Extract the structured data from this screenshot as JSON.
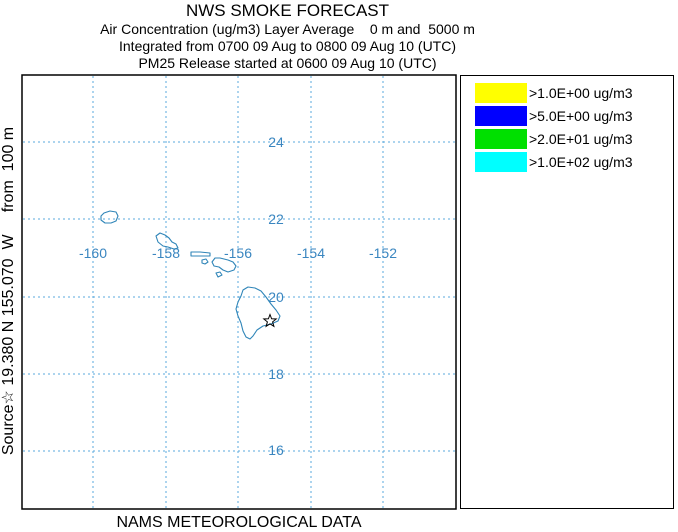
{
  "header": {
    "title": "NWS SMOKE FORECAST",
    "line2": "Air Concentration (ug/m3) Layer Average    0 m and  5000 m",
    "line3": "Integrated from 0700 09 Aug to 0800 09 Aug 10 (UTC)",
    "line4": "PM25 Release started at 0600 09 Aug 10 (UTC)"
  },
  "side_label": "Source☆ 19.380 N 155.070  W     from  100 m",
  "bottom_label": "NAMS METEOROLOGICAL DATA",
  "map": {
    "gridline_color": "#5aa9dc",
    "label_color": "#3a86c0",
    "coast_color": "#2f85b8",
    "longitude_labels": [
      "-160",
      "-158",
      "-156",
      "-154",
      "-152"
    ],
    "latitude_labels": [
      "24",
      "22",
      "20",
      "18",
      "16"
    ],
    "source_marker": "star-icon"
  },
  "legend": {
    "items": [
      {
        "label": ">1.0E+00 ug/m3",
        "color": "#ffff00"
      },
      {
        "label": ">5.0E+00 ug/m3",
        "color": "#0000ff"
      },
      {
        "label": ">2.0E+01 ug/m3",
        "color": "#00e000"
      },
      {
        "label": ">1.0E+02 ug/m3",
        "color": "#00ffff"
      }
    ]
  }
}
